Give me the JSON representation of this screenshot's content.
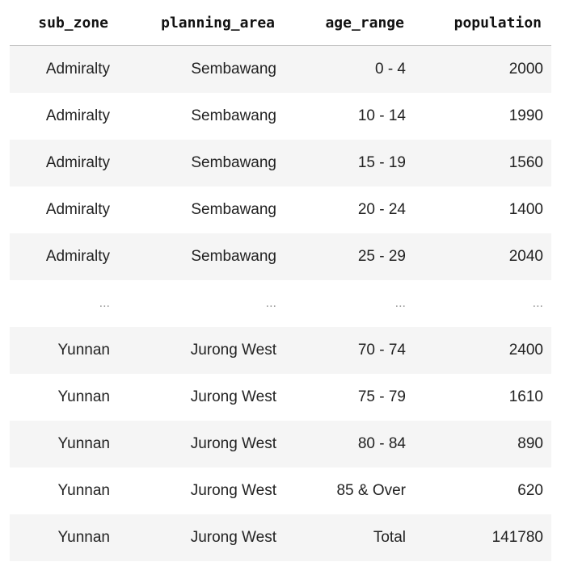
{
  "table": {
    "columns": [
      "sub_zone",
      "planning_area",
      "age_range",
      "population"
    ],
    "rows": [
      [
        "Admiralty",
        "Sembawang",
        "0 - 4",
        "2000"
      ],
      [
        "Admiralty",
        "Sembawang",
        "10 - 14",
        "1990"
      ],
      [
        "Admiralty",
        "Sembawang",
        "15 - 19",
        "1560"
      ],
      [
        "Admiralty",
        "Sembawang",
        "20 - 24",
        "1400"
      ],
      [
        "Admiralty",
        "Sembawang",
        "25 - 29",
        "2040"
      ],
      [
        "...",
        "...",
        "...",
        "..."
      ],
      [
        "Yunnan",
        "Jurong West",
        "70 - 74",
        "2400"
      ],
      [
        "Yunnan",
        "Jurong West",
        "75 - 79",
        "1610"
      ],
      [
        "Yunnan",
        "Jurong West",
        "80 - 84",
        "890"
      ],
      [
        "Yunnan",
        "Jurong West",
        "85 & Over",
        "620"
      ],
      [
        "Yunnan",
        "Jurong West",
        "Total",
        "141780"
      ]
    ]
  }
}
